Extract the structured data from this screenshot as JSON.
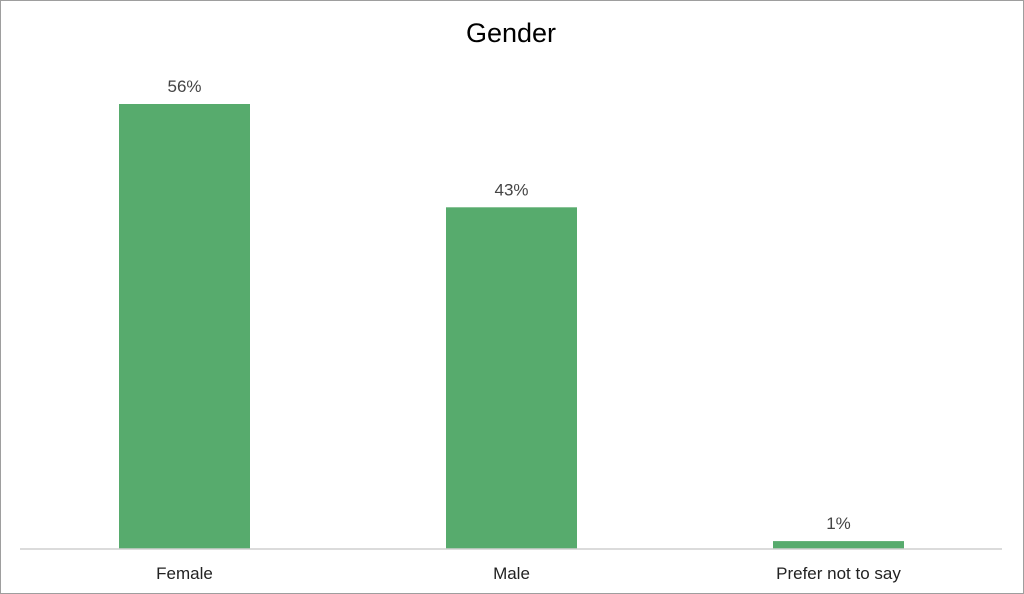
{
  "chart_data": {
    "type": "bar",
    "title": "Gender",
    "categories": [
      "Female",
      "Male",
      "Prefer not to say"
    ],
    "values": [
      56,
      43,
      1
    ],
    "value_labels": [
      "56%",
      "43%",
      "1%"
    ],
    "unit": "%",
    "xlabel": "",
    "ylabel": "",
    "ylim": [
      0,
      60
    ],
    "grid": false,
    "legend": "none",
    "colors": {
      "bar": "#57ab6d",
      "axis": "#cfcfcf",
      "frame": "#9e9e9e"
    }
  }
}
